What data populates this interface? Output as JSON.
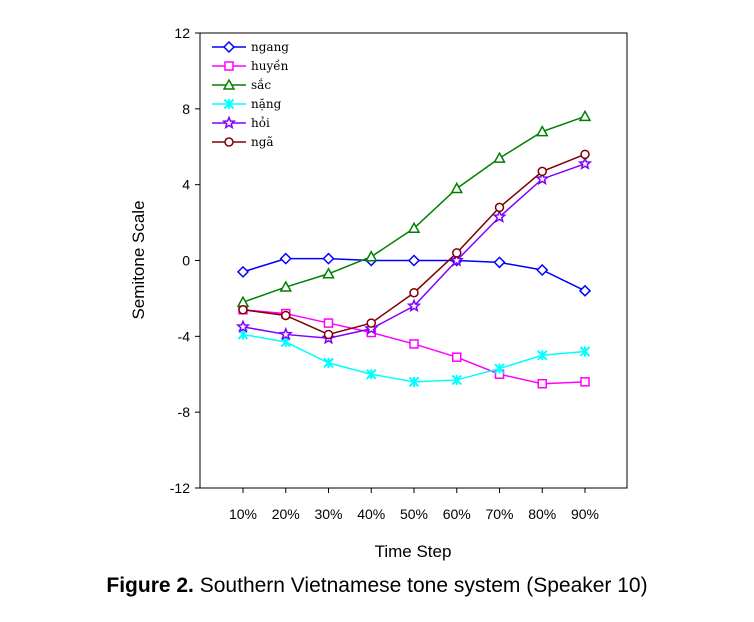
{
  "chart_data": {
    "type": "line",
    "categories": [
      "10%",
      "20%",
      "30%",
      "40%",
      "50%",
      "60%",
      "70%",
      "80%",
      "90%"
    ],
    "xlabel": "Time Step",
    "ylabel": "Semitone Scale",
    "ylim": [
      -12,
      12
    ],
    "yticks": [
      -12,
      -8,
      -4,
      0,
      4,
      8,
      12
    ],
    "legend_position": "top-left",
    "grid": false,
    "series": [
      {
        "name": "ngang",
        "color": "#0000ff",
        "marker": "diamond",
        "values": [
          -0.6,
          0.1,
          0.1,
          0.0,
          0.0,
          0.0,
          -0.1,
          -0.5,
          -1.6
        ]
      },
      {
        "name": "huyền",
        "color": "#ff00ff",
        "marker": "square",
        "values": [
          -2.6,
          -2.8,
          -3.3,
          -3.8,
          -4.4,
          -5.1,
          -6.0,
          -6.5,
          -6.4
        ]
      },
      {
        "name": "sắc",
        "color": "#008000",
        "marker": "triangle",
        "values": [
          -2.2,
          -1.4,
          -0.7,
          0.2,
          1.7,
          3.8,
          5.4,
          6.8,
          7.6
        ]
      },
      {
        "name": "nặng",
        "color": "#00ffff",
        "marker": "asterisk",
        "values": [
          -3.9,
          -4.3,
          -5.4,
          -6.0,
          -6.4,
          -6.3,
          -5.7,
          -5.0,
          -4.8
        ]
      },
      {
        "name": "hỏi",
        "color": "#8000ff",
        "marker": "star",
        "values": [
          -3.5,
          -3.9,
          -4.1,
          -3.6,
          -2.4,
          0.0,
          2.3,
          4.3,
          5.1
        ]
      },
      {
        "name": "ngã",
        "color": "#800000",
        "marker": "circle",
        "values": [
          -2.6,
          -2.9,
          -3.9,
          -3.3,
          -1.7,
          0.4,
          2.8,
          4.7,
          5.6
        ]
      }
    ]
  },
  "caption": {
    "label": "Figure 2.",
    "text": " Southern Vietnamese tone system (Speaker 10)"
  }
}
